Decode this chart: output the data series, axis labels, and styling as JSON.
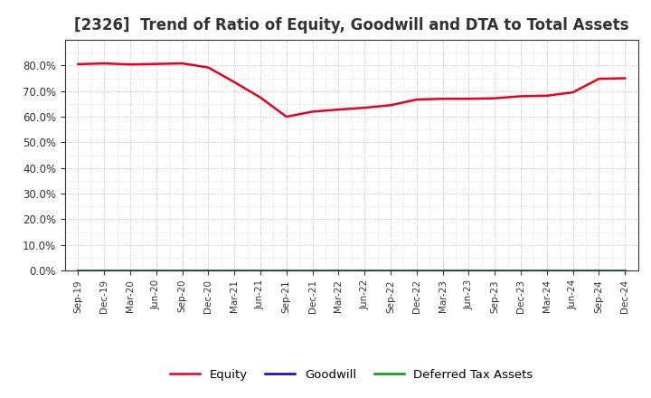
{
  "title": "[2326]  Trend of Ratio of Equity, Goodwill and DTA to Total Assets",
  "labels": [
    "Sep-19",
    "Dec-19",
    "Mar-20",
    "Jun-20",
    "Sep-20",
    "Dec-20",
    "Mar-21",
    "Jun-21",
    "Sep-21",
    "Dec-21",
    "Mar-22",
    "Jun-22",
    "Sep-22",
    "Dec-22",
    "Mar-23",
    "Jun-23",
    "Sep-23",
    "Dec-23",
    "Mar-24",
    "Jun-24",
    "Sep-24",
    "Dec-24"
  ],
  "equity": [
    0.805,
    0.808,
    0.804,
    0.806,
    0.808,
    0.792,
    0.735,
    0.675,
    0.6,
    0.62,
    0.628,
    0.635,
    0.645,
    0.667,
    0.67,
    0.67,
    0.672,
    0.68,
    0.682,
    0.695,
    0.748,
    0.75
  ],
  "goodwill": [
    0.0,
    0.0,
    0.0,
    0.0,
    0.0,
    0.0,
    0.0,
    0.0,
    0.0,
    0.0,
    0.0,
    0.0,
    0.0,
    0.0,
    0.0,
    0.0,
    0.0,
    0.0,
    0.0,
    0.0,
    0.0,
    0.0
  ],
  "dta": [
    0.0,
    0.0,
    0.0,
    0.0,
    0.0,
    0.0,
    0.0,
    0.0,
    0.0,
    0.0,
    0.0,
    0.0,
    0.0,
    0.0,
    0.0,
    0.0,
    0.0,
    0.0,
    0.0,
    0.0,
    0.0,
    0.0
  ],
  "equity_color": "#e8001c",
  "goodwill_color": "#0000cc",
  "dta_color": "#009900",
  "ylim": [
    0.0,
    0.9
  ],
  "yticks": [
    0.0,
    0.1,
    0.2,
    0.3,
    0.4,
    0.5,
    0.6,
    0.7,
    0.8
  ],
  "bg_color": "#ffffff",
  "plot_bg_color": "#ffffff",
  "grid_color": "#aaaaaa",
  "title_fontsize": 12,
  "legend_labels": [
    "Equity",
    "Goodwill",
    "Deferred Tax Assets"
  ]
}
